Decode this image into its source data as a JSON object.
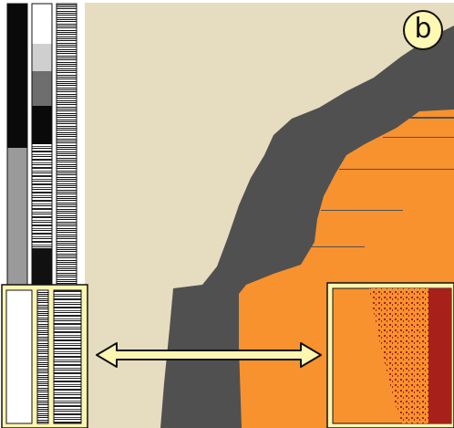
{
  "figure": {
    "panel_label": "b",
    "colors": {
      "background": "#e6dcc0",
      "dark_region": "#505050",
      "orange_region": "#f7922e",
      "zoom_dark_dots": "#a8201a",
      "highlight_frame": "#fdf5b2",
      "outline": "#111111"
    },
    "elements": [
      "bar-1",
      "bar-2",
      "bar-3",
      "main-heatmap",
      "zoom-inset-left",
      "zoom-inset-right",
      "double-arrow",
      "panel-label-b"
    ]
  }
}
